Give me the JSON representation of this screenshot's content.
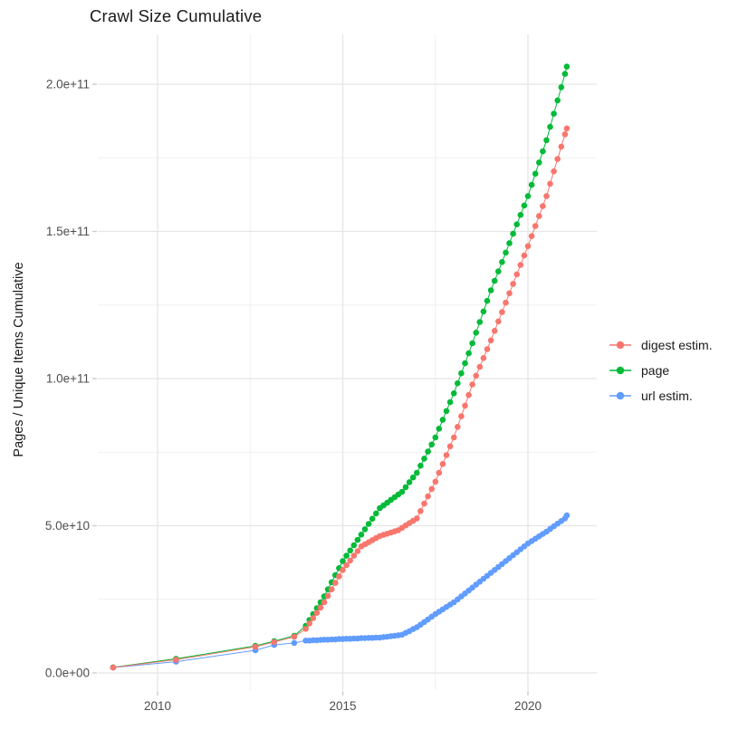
{
  "title": "Crawl Size Cumulative",
  "axes": {
    "y_label": "Pages / Unique Items Cumulative",
    "x_ticks": [
      {
        "label": "2010",
        "year": 2010
      },
      {
        "label": "2015",
        "year": 2015
      },
      {
        "label": "2020",
        "year": 2020
      }
    ],
    "y_ticks": [
      {
        "label": "0.0e+00",
        "value_e9": 0
      },
      {
        "label": "5.0e+10",
        "value_e9": 50
      },
      {
        "label": "1.0e+11",
        "value_e9": 100
      },
      {
        "label": "1.5e+11",
        "value_e9": 150
      },
      {
        "label": "2.0e+11",
        "value_e9": 200
      }
    ],
    "x_minor_years": [
      2012.5,
      2017.5
    ],
    "y_minor_values_e9": [
      25,
      75,
      125,
      175
    ]
  },
  "legend": [
    {
      "label": "digest estim.",
      "color": "#F8766D"
    },
    {
      "label": "page",
      "color": "#00BA38"
    },
    {
      "label": "url estim.",
      "color": "#619CFF"
    }
  ],
  "colors": {
    "salmon": "#F8766D",
    "green": "#00BA38",
    "blue": "#619CFF",
    "grid_major": "#E5E5E5",
    "grid_minor": "#F0F0F0",
    "tick_mark": "#C9C9C9",
    "axis_text": "#4D4D4D",
    "title_text": "#1A1A1A"
  },
  "chart_data": {
    "type": "scatter",
    "mode": "points+lines",
    "title": "Crawl Size Cumulative",
    "xlabel": "",
    "ylabel": "Pages / Unique Items Cumulative",
    "value_unit": "1e9 (y values below are billions; 206 = 2.06e+11)",
    "x_unit": "decimal year",
    "xlim": [
      2008.2,
      2021.8
    ],
    "ylim_e9": [
      -5,
      217
    ],
    "grid": true,
    "legend_position": "right-middle",
    "series": [
      {
        "name": "digest estim.",
        "color": "#F8766D",
        "points": [
          [
            2008.8,
            1.85
          ],
          [
            2010.5,
            4.5
          ],
          [
            2012.64,
            8.9
          ],
          [
            2013.15,
            10.5
          ],
          [
            2013.69,
            12.3
          ],
          [
            2014.0,
            15.0
          ],
          [
            2014.1,
            16.8
          ],
          [
            2014.2,
            18.6
          ],
          [
            2014.3,
            20.4
          ],
          [
            2014.4,
            22.2
          ],
          [
            2014.5,
            24.0
          ],
          [
            2014.6,
            26.2
          ],
          [
            2014.7,
            28.4
          ],
          [
            2014.8,
            30.6
          ],
          [
            2014.9,
            32.8
          ],
          [
            2015.0,
            35.0
          ],
          [
            2015.1,
            36.6
          ],
          [
            2015.2,
            38.2
          ],
          [
            2015.3,
            39.8
          ],
          [
            2015.4,
            41.4
          ],
          [
            2015.5,
            43.0
          ],
          [
            2015.6,
            43.7
          ],
          [
            2015.7,
            44.4
          ],
          [
            2015.8,
            45.1
          ],
          [
            2015.9,
            45.8
          ],
          [
            2016.0,
            46.5
          ],
          [
            2016.1,
            46.9
          ],
          [
            2016.2,
            47.3
          ],
          [
            2016.3,
            47.7
          ],
          [
            2016.4,
            48.1
          ],
          [
            2016.5,
            48.5
          ],
          [
            2016.6,
            49.3
          ],
          [
            2016.7,
            50.1
          ],
          [
            2016.8,
            50.9
          ],
          [
            2016.9,
            51.7
          ],
          [
            2017.0,
            52.5
          ],
          [
            2017.1,
            55.0
          ],
          [
            2017.2,
            57.5
          ],
          [
            2017.3,
            60.0
          ],
          [
            2017.4,
            62.5
          ],
          [
            2017.5,
            65.0
          ],
          [
            2017.6,
            68.0
          ],
          [
            2017.7,
            71.0
          ],
          [
            2017.8,
            74.0
          ],
          [
            2017.9,
            77.0
          ],
          [
            2018.0,
            80.0
          ],
          [
            2018.1,
            83.6
          ],
          [
            2018.2,
            87.2
          ],
          [
            2018.3,
            90.8
          ],
          [
            2018.4,
            94.4
          ],
          [
            2018.5,
            98.0
          ],
          [
            2018.6,
            101.0
          ],
          [
            2018.7,
            104.0
          ],
          [
            2018.8,
            107.0
          ],
          [
            2018.9,
            110.0
          ],
          [
            2019.0,
            113.0
          ],
          [
            2019.1,
            116.2
          ],
          [
            2019.2,
            119.4
          ],
          [
            2019.3,
            122.6
          ],
          [
            2019.4,
            125.8
          ],
          [
            2019.5,
            129.0
          ],
          [
            2019.6,
            132.2
          ],
          [
            2019.7,
            135.4
          ],
          [
            2019.8,
            138.6
          ],
          [
            2019.9,
            141.8
          ],
          [
            2020.0,
            145.0
          ],
          [
            2020.1,
            148.4
          ],
          [
            2020.2,
            151.8
          ],
          [
            2020.3,
            155.2
          ],
          [
            2020.4,
            158.6
          ],
          [
            2020.5,
            162.0
          ],
          [
            2020.6,
            166.2
          ],
          [
            2020.7,
            170.4
          ],
          [
            2020.8,
            174.6
          ],
          [
            2020.9,
            178.8
          ],
          [
            2021.0,
            183.0
          ],
          [
            2021.05,
            185.0
          ]
        ]
      },
      {
        "name": "page",
        "color": "#00BA38",
        "points": [
          [
            2008.8,
            1.9
          ],
          [
            2010.5,
            4.8
          ],
          [
            2012.64,
            9.2
          ],
          [
            2013.15,
            10.8
          ],
          [
            2013.69,
            12.6
          ],
          [
            2014.0,
            16.0
          ],
          [
            2014.1,
            18.0
          ],
          [
            2014.2,
            20.0
          ],
          [
            2014.3,
            22.0
          ],
          [
            2014.4,
            24.0
          ],
          [
            2014.5,
            26.0
          ],
          [
            2014.6,
            28.4
          ],
          [
            2014.7,
            30.8
          ],
          [
            2014.8,
            33.2
          ],
          [
            2014.9,
            35.6
          ],
          [
            2015.0,
            38.0
          ],
          [
            2015.1,
            39.8
          ],
          [
            2015.2,
            41.6
          ],
          [
            2015.3,
            43.4
          ],
          [
            2015.4,
            45.2
          ],
          [
            2015.5,
            47.0
          ],
          [
            2015.6,
            48.8
          ],
          [
            2015.7,
            50.6
          ],
          [
            2015.8,
            52.4
          ],
          [
            2015.9,
            54.2
          ],
          [
            2016.0,
            56.0
          ],
          [
            2016.1,
            56.9
          ],
          [
            2016.2,
            57.8
          ],
          [
            2016.3,
            58.8
          ],
          [
            2016.4,
            59.7
          ],
          [
            2016.5,
            60.6
          ],
          [
            2016.6,
            61.5
          ],
          [
            2016.7,
            63.1
          ],
          [
            2016.8,
            64.8
          ],
          [
            2016.9,
            66.4
          ],
          [
            2017.0,
            68.0
          ],
          [
            2017.1,
            70.4
          ],
          [
            2017.2,
            72.8
          ],
          [
            2017.3,
            75.2
          ],
          [
            2017.4,
            77.6
          ],
          [
            2017.5,
            80.0
          ],
          [
            2017.6,
            83.0
          ],
          [
            2017.7,
            86.0
          ],
          [
            2017.8,
            89.0
          ],
          [
            2017.9,
            92.0
          ],
          [
            2018.0,
            95.0
          ],
          [
            2018.1,
            98.4
          ],
          [
            2018.2,
            101.8
          ],
          [
            2018.3,
            105.2
          ],
          [
            2018.4,
            108.6
          ],
          [
            2018.5,
            112.0
          ],
          [
            2018.6,
            115.6
          ],
          [
            2018.7,
            119.2
          ],
          [
            2018.8,
            122.8
          ],
          [
            2018.9,
            126.4
          ],
          [
            2019.0,
            130.0
          ],
          [
            2019.1,
            133.2
          ],
          [
            2019.2,
            136.4
          ],
          [
            2019.3,
            139.6
          ],
          [
            2019.4,
            142.8
          ],
          [
            2019.5,
            146.0
          ],
          [
            2019.6,
            149.2
          ],
          [
            2019.7,
            152.4
          ],
          [
            2019.8,
            155.6
          ],
          [
            2019.9,
            158.8
          ],
          [
            2020.0,
            162.0
          ],
          [
            2020.1,
            165.8
          ],
          [
            2020.2,
            169.6
          ],
          [
            2020.3,
            173.4
          ],
          [
            2020.4,
            177.2
          ],
          [
            2020.5,
            181.0
          ],
          [
            2020.6,
            185.5
          ],
          [
            2020.7,
            190.0
          ],
          [
            2020.8,
            194.5
          ],
          [
            2020.9,
            199.0
          ],
          [
            2021.0,
            203.5
          ],
          [
            2021.05,
            206.0
          ]
        ]
      },
      {
        "name": "url estim.",
        "color": "#619CFF",
        "points": [
          [
            2008.8,
            1.8
          ],
          [
            2010.5,
            3.8
          ],
          [
            2012.64,
            7.7
          ],
          [
            2013.15,
            9.5
          ],
          [
            2013.69,
            10.2
          ],
          [
            2014.0,
            11.0
          ],
          [
            2014.1,
            11.0
          ],
          [
            2014.2,
            11.1
          ],
          [
            2014.3,
            11.1
          ],
          [
            2014.4,
            11.2
          ],
          [
            2014.5,
            11.3
          ],
          [
            2014.6,
            11.3
          ],
          [
            2014.7,
            11.4
          ],
          [
            2014.8,
            11.4
          ],
          [
            2014.9,
            11.5
          ],
          [
            2015.0,
            11.5
          ],
          [
            2015.1,
            11.6
          ],
          [
            2015.2,
            11.6
          ],
          [
            2015.3,
            11.7
          ],
          [
            2015.4,
            11.7
          ],
          [
            2015.5,
            11.8
          ],
          [
            2015.6,
            11.8
          ],
          [
            2015.7,
            11.9
          ],
          [
            2015.8,
            11.9
          ],
          [
            2015.9,
            12.0
          ],
          [
            2016.0,
            12.0
          ],
          [
            2016.1,
            12.2
          ],
          [
            2016.2,
            12.3
          ],
          [
            2016.3,
            12.5
          ],
          [
            2016.4,
            12.6
          ],
          [
            2016.5,
            12.8
          ],
          [
            2016.6,
            13.0
          ],
          [
            2016.7,
            13.6
          ],
          [
            2016.8,
            14.2
          ],
          [
            2016.9,
            14.9
          ],
          [
            2017.0,
            15.5
          ],
          [
            2017.1,
            16.4
          ],
          [
            2017.2,
            17.3
          ],
          [
            2017.3,
            18.2
          ],
          [
            2017.4,
            19.1
          ],
          [
            2017.5,
            20.0
          ],
          [
            2017.6,
            20.8
          ],
          [
            2017.7,
            21.6
          ],
          [
            2017.8,
            22.4
          ],
          [
            2017.9,
            23.2
          ],
          [
            2018.0,
            24.0
          ],
          [
            2018.1,
            25.0
          ],
          [
            2018.2,
            26.0
          ],
          [
            2018.3,
            27.0
          ],
          [
            2018.4,
            28.0
          ],
          [
            2018.5,
            29.0
          ],
          [
            2018.6,
            30.0
          ],
          [
            2018.7,
            31.0
          ],
          [
            2018.8,
            32.0
          ],
          [
            2018.9,
            33.0
          ],
          [
            2019.0,
            34.0
          ],
          [
            2019.1,
            35.0
          ],
          [
            2019.2,
            36.0
          ],
          [
            2019.3,
            37.0
          ],
          [
            2019.4,
            38.0
          ],
          [
            2019.5,
            39.0
          ],
          [
            2019.6,
            40.0
          ],
          [
            2019.7,
            41.0
          ],
          [
            2019.8,
            42.0
          ],
          [
            2019.9,
            43.0
          ],
          [
            2020.0,
            44.0
          ],
          [
            2020.1,
            44.8
          ],
          [
            2020.2,
            45.6
          ],
          [
            2020.3,
            46.4
          ],
          [
            2020.4,
            47.2
          ],
          [
            2020.5,
            48.0
          ],
          [
            2020.6,
            48.9
          ],
          [
            2020.7,
            49.8
          ],
          [
            2020.8,
            50.7
          ],
          [
            2020.9,
            51.6
          ],
          [
            2021.0,
            52.5
          ],
          [
            2021.05,
            53.5
          ]
        ]
      }
    ]
  }
}
